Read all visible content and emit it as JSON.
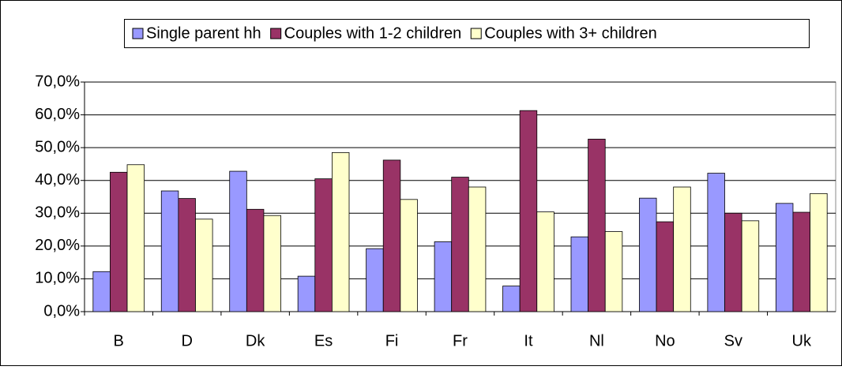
{
  "chart_data": {
    "type": "bar",
    "categories": [
      "B",
      "D",
      "Dk",
      "Es",
      "Fi",
      "Fr",
      "It",
      "Nl",
      "No",
      "Sv",
      "Uk"
    ],
    "series": [
      {
        "name": "Single parent hh",
        "color": "#9999ff",
        "values": [
          12.2,
          36.8,
          42.8,
          10.8,
          19.2,
          21.3,
          7.8,
          22.8,
          34.6,
          42.2,
          33.0
        ]
      },
      {
        "name": "Couples with 1-2 children",
        "color": "#993366",
        "values": [
          42.5,
          34.5,
          31.2,
          40.5,
          46.2,
          41.0,
          61.3,
          52.6,
          27.4,
          30.0,
          30.3
        ]
      },
      {
        "name": "Couples with 3+ children",
        "color": "#ffffcc",
        "values": [
          44.8,
          28.2,
          29.3,
          48.5,
          34.2,
          38.0,
          30.4,
          24.4,
          38.0,
          27.7,
          36.0
        ]
      }
    ],
    "ylim": [
      0,
      70
    ],
    "yticks": [
      {
        "value": 0,
        "label": "0,0%"
      },
      {
        "value": 10,
        "label": "10,0%"
      },
      {
        "value": 20,
        "label": "20,0%"
      },
      {
        "value": 30,
        "label": "30,0%"
      },
      {
        "value": 40,
        "label": "40,0%"
      },
      {
        "value": 50,
        "label": "50,0%"
      },
      {
        "value": 60,
        "label": "60,0%"
      },
      {
        "value": 70,
        "label": "70,0%"
      }
    ],
    "grid": true
  }
}
